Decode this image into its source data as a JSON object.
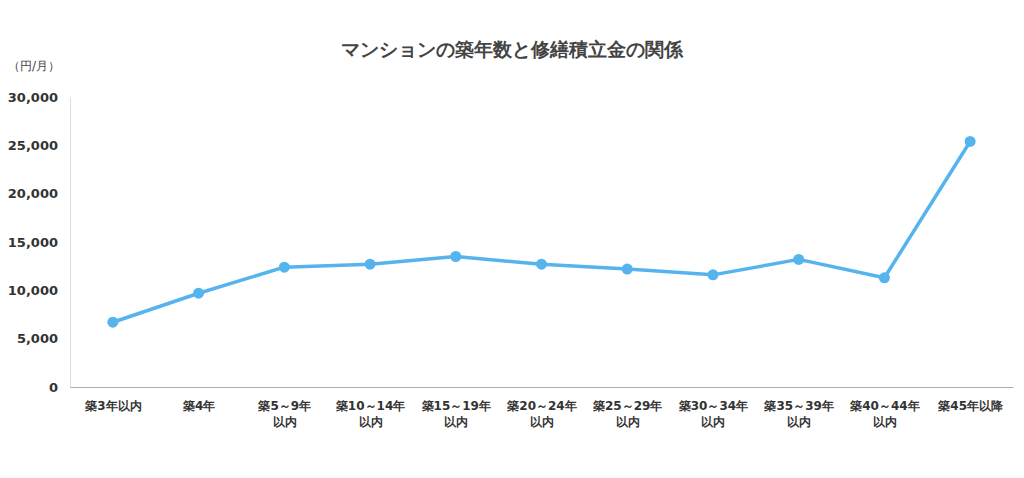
{
  "chart_data": {
    "type": "line",
    "title": "マンションの築年数と修繕積立金の関係",
    "y_label": "（円/月）",
    "categories": [
      "築3年以内",
      "築4年",
      "築5～9年\n以内",
      "築10～14年\n以内",
      "築15～19年\n以内",
      "築20～24年\n以内",
      "築25～29年\n以内",
      "築30～34年\n以内",
      "築35～39年\n以内",
      "築40～44年\n以内",
      "築45年以降"
    ],
    "values": [
      6700,
      9700,
      12400,
      12700,
      13500,
      12700,
      12200,
      11600,
      13200,
      11300,
      25400
    ],
    "color": "#55b4ee",
    "marker": "circle",
    "ylim": [
      0,
      30000
    ],
    "yticks": [
      0,
      {
        "value": 5000,
        "label": "5,000"
      },
      {
        "value": 10000,
        "label": "10,000"
      },
      {
        "value": 15000,
        "label": "15,000"
      },
      {
        "value": 20000,
        "label": "20,000"
      },
      {
        "value": 25000,
        "label": "25,000"
      },
      {
        "value": 30000,
        "label": "30,000"
      }
    ],
    "grid": false
  }
}
